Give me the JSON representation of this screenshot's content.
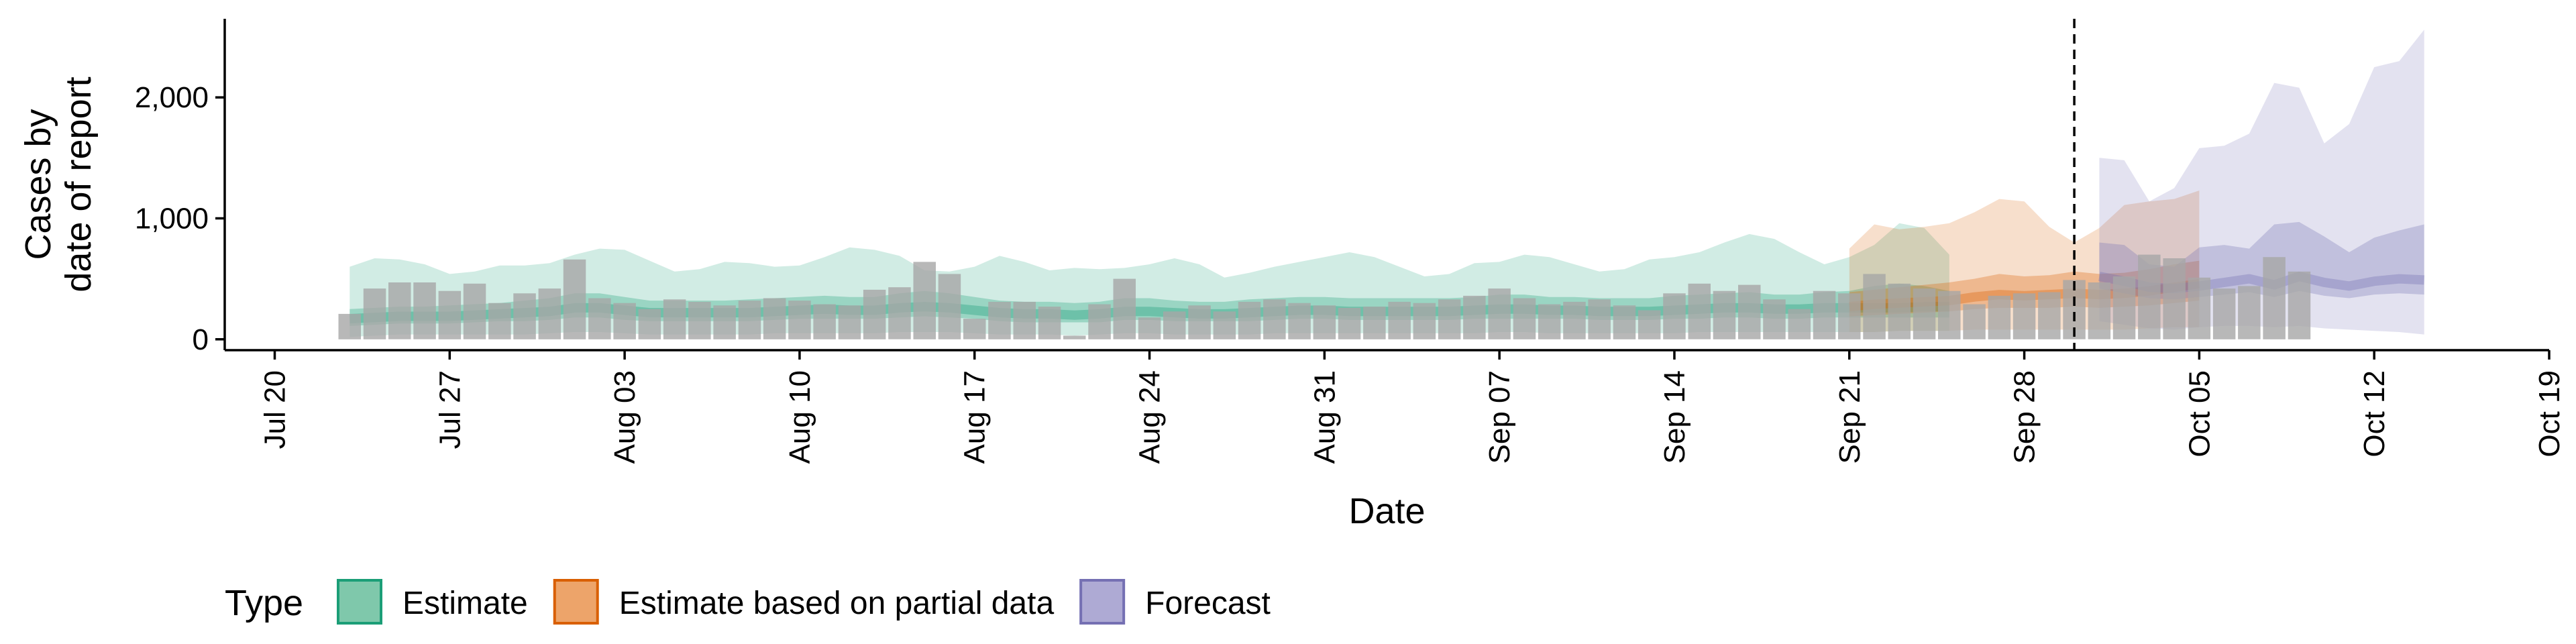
{
  "chart_data": {
    "type": "bar",
    "xlabel": "Date",
    "ylabel_lines": [
      "Cases by",
      "date of report"
    ],
    "ylim": [
      -90,
      2650
    ],
    "yticks": [
      0,
      1000,
      2000
    ],
    "ytick_labels": [
      "0",
      "1,000",
      "2,000"
    ],
    "xlim": [
      "2020-07-18",
      "2020-10-19"
    ],
    "xticks": [
      "2020-07-20",
      "2020-07-27",
      "2020-08-03",
      "2020-08-10",
      "2020-08-17",
      "2020-08-24",
      "2020-08-31",
      "2020-09-07",
      "2020-09-14",
      "2020-09-21",
      "2020-09-28",
      "2020-10-05",
      "2020-10-12",
      "2020-10-19"
    ],
    "xtick_labels": [
      "Jul 20",
      "Jul 27",
      "Aug 03",
      "Aug 10",
      "Aug 17",
      "Aug 24",
      "Aug 31",
      "Sep 07",
      "Sep 14",
      "Sep 21",
      "Sep 28",
      "Oct 05",
      "Oct 12",
      "Oct 19"
    ],
    "reference_line_date": "2020-09-30",
    "legend": {
      "title": "Type",
      "position": "bottom",
      "items": [
        {
          "label": "Estimate",
          "fill": "#7fc8ab",
          "stroke": "#1b9e77"
        },
        {
          "label": "Estimate based on partial data",
          "fill": "#eda46a",
          "stroke": "#d95f02"
        },
        {
          "label": "Forecast",
          "fill": "#aeaad4",
          "stroke": "#7570b3"
        }
      ]
    },
    "colors": {
      "estimate": "#1b9e77",
      "partial": "#d95f02",
      "forecast": "#7570b3",
      "bars": "#a6a6a6"
    },
    "bars": {
      "start": "2020-07-23",
      "values": [
        210,
        420,
        470,
        470,
        400,
        460,
        300,
        380,
        420,
        660,
        340,
        300,
        250,
        330,
        310,
        280,
        320,
        340,
        320,
        290,
        280,
        410,
        430,
        640,
        540,
        170,
        310,
        310,
        270,
        30,
        290,
        500,
        180,
        230,
        280,
        230,
        310,
        330,
        300,
        280,
        260,
        270,
        310,
        300,
        330,
        360,
        420,
        340,
        290,
        310,
        330,
        280,
        240,
        380,
        460,
        400,
        450,
        330,
        250,
        400,
        380,
        540,
        460,
        420,
        400,
        290,
        360,
        380,
        390,
        490,
        470,
        520,
        700,
        670,
        510,
        420,
        440,
        680,
        560
      ]
    },
    "estimate": {
      "start": "2020-07-23",
      "median": [
        170,
        180,
        190,
        190,
        190,
        200,
        210,
        220,
        230,
        260,
        260,
        240,
        220,
        220,
        220,
        220,
        220,
        230,
        240,
        250,
        240,
        240,
        260,
        270,
        260,
        240,
        220,
        210,
        210,
        200,
        210,
        230,
        230,
        220,
        210,
        210,
        220,
        230,
        240,
        240,
        230,
        230,
        230,
        230,
        230,
        240,
        250,
        250,
        240,
        240,
        230,
        230,
        230,
        240,
        250,
        260,
        260,
        250,
        250,
        260,
        260,
        260,
        260,
        270,
        270
      ],
      "lower50": [
        110,
        120,
        130,
        130,
        130,
        140,
        150,
        150,
        160,
        180,
        180,
        160,
        150,
        150,
        150,
        150,
        150,
        160,
        170,
        170,
        170,
        170,
        180,
        190,
        180,
        170,
        150,
        140,
        140,
        140,
        140,
        160,
        160,
        150,
        150,
        150,
        150,
        160,
        170,
        170,
        160,
        160,
        160,
        160,
        160,
        170,
        170,
        170,
        170,
        170,
        160,
        160,
        160,
        170,
        170,
        180,
        180,
        170,
        170,
        180,
        180,
        180,
        180,
        180,
        180
      ],
      "upper50": [
        250,
        260,
        270,
        270,
        280,
        290,
        300,
        320,
        340,
        380,
        380,
        350,
        320,
        320,
        320,
        320,
        330,
        340,
        350,
        360,
        350,
        350,
        380,
        400,
        380,
        350,
        320,
        310,
        310,
        300,
        310,
        340,
        340,
        320,
        310,
        310,
        330,
        340,
        350,
        350,
        340,
        340,
        340,
        340,
        340,
        350,
        370,
        370,
        350,
        350,
        340,
        340,
        340,
        360,
        370,
        380,
        390,
        370,
        370,
        390,
        400,
        440,
        460,
        440,
        400
      ],
      "lower90": [
        20,
        30,
        40,
        40,
        40,
        40,
        40,
        40,
        50,
        60,
        60,
        50,
        40,
        40,
        40,
        40,
        40,
        50,
        50,
        50,
        50,
        50,
        60,
        60,
        60,
        50,
        40,
        40,
        40,
        30,
        40,
        50,
        50,
        40,
        40,
        40,
        40,
        50,
        50,
        50,
        50,
        50,
        50,
        50,
        50,
        50,
        60,
        60,
        50,
        50,
        50,
        50,
        50,
        50,
        60,
        60,
        60,
        60,
        60,
        60,
        60,
        60,
        70,
        70,
        70
      ],
      "upper90": [
        600,
        670,
        660,
        620,
        540,
        560,
        610,
        610,
        630,
        700,
        750,
        740,
        650,
        560,
        580,
        640,
        630,
        600,
        610,
        680,
        760,
        740,
        690,
        570,
        560,
        600,
        690,
        640,
        570,
        590,
        580,
        590,
        620,
        670,
        620,
        510,
        550,
        600,
        640,
        680,
        720,
        680,
        600,
        520,
        540,
        630,
        640,
        700,
        680,
        620,
        560,
        580,
        660,
        680,
        720,
        800,
        870,
        830,
        720,
        620,
        680,
        780,
        960,
        920,
        700
      ]
    },
    "partial": {
      "start": "2020-09-21",
      "median": [
        270,
        290,
        300,
        310,
        320,
        350,
        370,
        360,
        370,
        380,
        370,
        380,
        400,
        430,
        460
      ],
      "lower50": [
        190,
        200,
        210,
        220,
        230,
        250,
        260,
        260,
        260,
        270,
        260,
        270,
        280,
        300,
        320
      ],
      "upper50": [
        390,
        410,
        430,
        450,
        470,
        500,
        540,
        520,
        530,
        560,
        540,
        550,
        580,
        620,
        650
      ],
      "lower90": [
        60,
        60,
        70,
        70,
        70,
        80,
        80,
        80,
        80,
        80,
        80,
        80,
        90,
        100,
        100
      ],
      "upper90": [
        750,
        950,
        910,
        930,
        960,
        1050,
        1160,
        1140,
        930,
        800,
        920,
        1110,
        1140,
        1160,
        1230
      ]
    },
    "forecast": {
      "start": "2020-10-01",
      "median": [
        520,
        480,
        430,
        420,
        440,
        470,
        500,
        450,
        520,
        470,
        440,
        480,
        500,
        490
      ],
      "lower50": [
        420,
        380,
        340,
        330,
        350,
        370,
        390,
        350,
        400,
        360,
        340,
        370,
        380,
        370
      ],
      "upper50": [
        800,
        780,
        620,
        600,
        760,
        780,
        750,
        950,
        970,
        850,
        720,
        840,
        900,
        950
      ],
      "lower90": [
        150,
        120,
        90,
        80,
        100,
        110,
        110,
        100,
        110,
        90,
        80,
        70,
        60,
        40
      ],
      "upper90": [
        1500,
        1480,
        1140,
        1250,
        1580,
        1600,
        1700,
        2120,
        2080,
        1620,
        1780,
        2250,
        2300,
        2560
      ]
    }
  }
}
